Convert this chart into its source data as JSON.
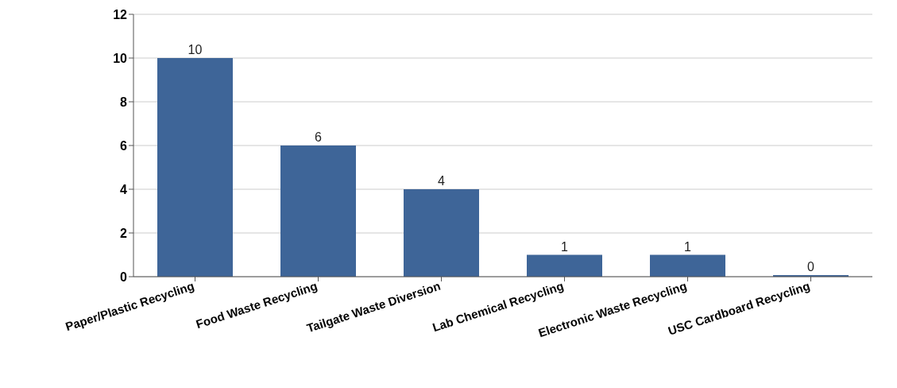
{
  "chart_data": {
    "type": "bar",
    "categories": [
      "Paper/Plastic Recycling",
      "Food Waste Recycling",
      "Tailgate Waste Diversion",
      "Lab Chemical Recycling",
      "Electronic Waste Recycling",
      "USC Cardboard Recycling"
    ],
    "values": [
      10,
      6,
      4,
      1,
      1,
      0
    ],
    "color": "#3e6598",
    "ylim": [
      0,
      12
    ],
    "yticks": [
      0,
      2,
      4,
      6,
      8,
      10,
      12
    ],
    "grid": "y",
    "data_labels": true,
    "legend": false
  }
}
